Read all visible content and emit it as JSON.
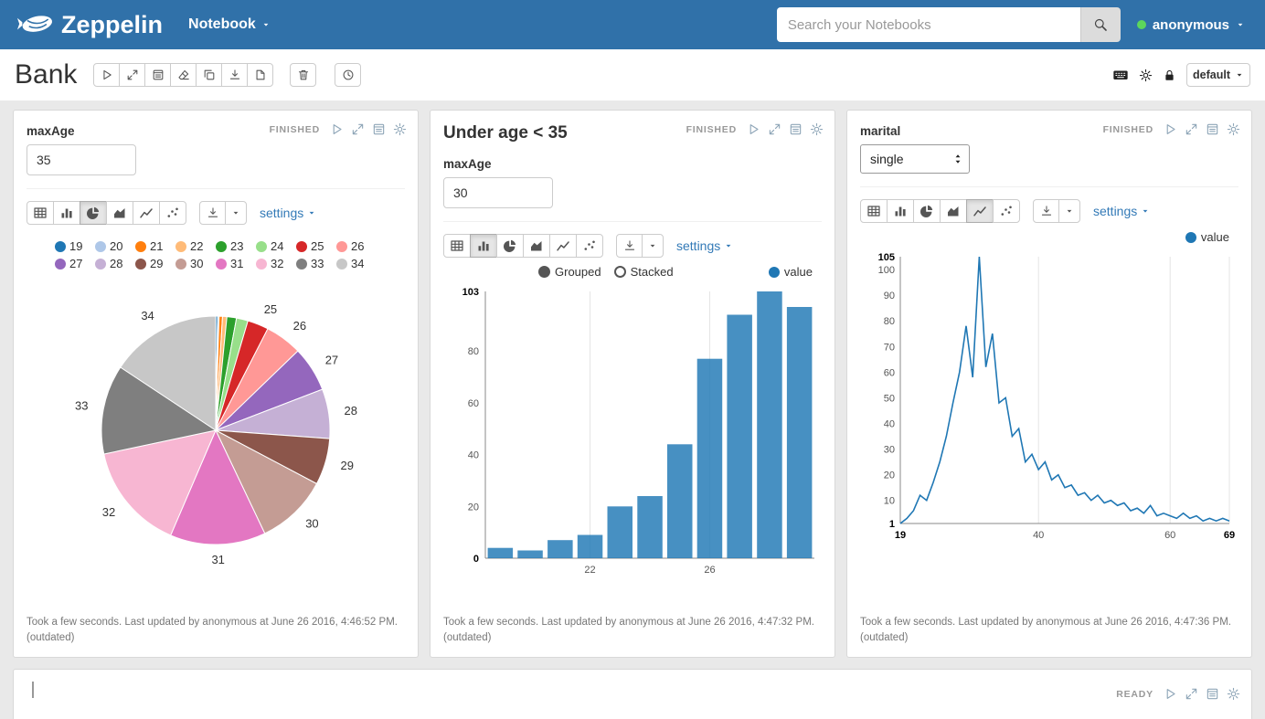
{
  "navbar": {
    "brand": "Zeppelin",
    "notebook_menu": "Notebook",
    "search_placeholder": "Search your Notebooks",
    "username": "anonymous"
  },
  "note_toolbar": {
    "title": "Bank",
    "version_label": "default"
  },
  "colors": {
    "navbar_background": "#3071a9",
    "accent_link": "#337ab7",
    "online_dot": "#5cd65c",
    "series": "#1f77b4"
  },
  "icons": {
    "search": "magnifier",
    "caret-down": "▾",
    "play": "▷",
    "expand": "⤢",
    "output": "▤",
    "gear": "⚙",
    "eraser": "eraser",
    "clone": "⧉",
    "download": "⤓",
    "file": "document",
    "trash": "trash-can",
    "clock": "clock",
    "keyboard": "keyboard",
    "lock": "padlock",
    "updown": "⇕",
    "chart-table": "table-grid",
    "chart-bar": "bars",
    "chart-pie": "pie",
    "chart-area": "area",
    "chart-line": "line",
    "chart-scatter": "dots"
  },
  "paragraphs": [
    {
      "status": "FINISHED",
      "form": {
        "label": "maxAge",
        "value": "35"
      },
      "settings_label": "settings",
      "footer": "Took a few seconds. Last updated by anonymous at June 26 2016, 4:46:52 PM.",
      "footer_note": "(outdated)"
    },
    {
      "title": "Under age < 35",
      "status": "FINISHED",
      "form": {
        "label": "maxAge",
        "value": "30"
      },
      "settings_label": "settings",
      "controls": {
        "grouped": "Grouped",
        "stacked": "Stacked"
      },
      "legend": "value",
      "footer": "Took a few seconds. Last updated by anonymous at June 26 2016, 4:47:32 PM.",
      "footer_note": "(outdated)"
    },
    {
      "status": "FINISHED",
      "form": {
        "label": "marital",
        "value": "single"
      },
      "settings_label": "settings",
      "legend": "value",
      "footer": "Took a few seconds. Last updated by anonymous at June 26 2016, 4:47:36 PM.",
      "footer_note": "(outdated)"
    }
  ],
  "empty_paragraph": {
    "status": "READY"
  },
  "chart_data": [
    {
      "type": "pie",
      "categories": [
        "19",
        "20",
        "21",
        "22",
        "23",
        "24",
        "25",
        "26",
        "27",
        "28",
        "29",
        "30",
        "31",
        "32",
        "33",
        "34"
      ],
      "values": [
        4,
        3,
        7,
        9,
        20,
        24,
        44,
        77,
        94,
        103,
        97,
        150,
        199,
        224,
        186,
        231
      ],
      "colors": [
        "#1f77b4",
        "#aec7e8",
        "#ff7f0e",
        "#ffbb78",
        "#2ca02c",
        "#98df8a",
        "#d62728",
        "#ff9896",
        "#9467bd",
        "#c5b0d5",
        "#8c564b",
        "#c49c94",
        "#e377c2",
        "#f7b6d2",
        "#7f7f7f",
        "#c7c7c7"
      ],
      "legend_position": "top",
      "label_threshold": 0.025
    },
    {
      "type": "bar",
      "series_name": "value",
      "color": "#1f77b4",
      "categories": [
        "19",
        "20",
        "21",
        "22",
        "23",
        "24",
        "25",
        "26",
        "27",
        "28",
        "29"
      ],
      "values": [
        4,
        3,
        7,
        9,
        20,
        24,
        44,
        77,
        94,
        103,
        97
      ],
      "ylim": [
        0,
        103
      ],
      "yticks": [
        0,
        20,
        40,
        60,
        80,
        103
      ],
      "xticks": [
        "22",
        "26"
      ],
      "grid": "vertical"
    },
    {
      "type": "line",
      "series_name": "value",
      "color": "#1f77b4",
      "x": [
        19,
        20,
        21,
        22,
        23,
        24,
        25,
        26,
        27,
        28,
        29,
        30,
        31,
        32,
        33,
        34,
        35,
        36,
        37,
        38,
        39,
        40,
        41,
        42,
        43,
        44,
        45,
        46,
        47,
        48,
        49,
        50,
        51,
        52,
        53,
        54,
        55,
        56,
        57,
        58,
        59,
        60,
        61,
        62,
        63,
        64,
        65,
        66,
        67,
        68,
        69
      ],
      "values": [
        1,
        3,
        6,
        12,
        10,
        17,
        25,
        35,
        48,
        60,
        78,
        58,
        105,
        62,
        75,
        48,
        50,
        35,
        38,
        25,
        28,
        22,
        25,
        18,
        20,
        15,
        16,
        12,
        13,
        10,
        12,
        9,
        10,
        8,
        9,
        6,
        7,
        5,
        8,
        4,
        5,
        4,
        3,
        5,
        3,
        4,
        2,
        3,
        2,
        3,
        2
      ],
      "xlim": [
        19,
        69
      ],
      "ylim": [
        1,
        105
      ],
      "yticks": [
        1,
        10,
        20,
        30,
        40,
        50,
        60,
        70,
        80,
        90,
        100,
        105
      ],
      "xticks": [
        19,
        40,
        60,
        69
      ],
      "grid": "vertical"
    }
  ]
}
